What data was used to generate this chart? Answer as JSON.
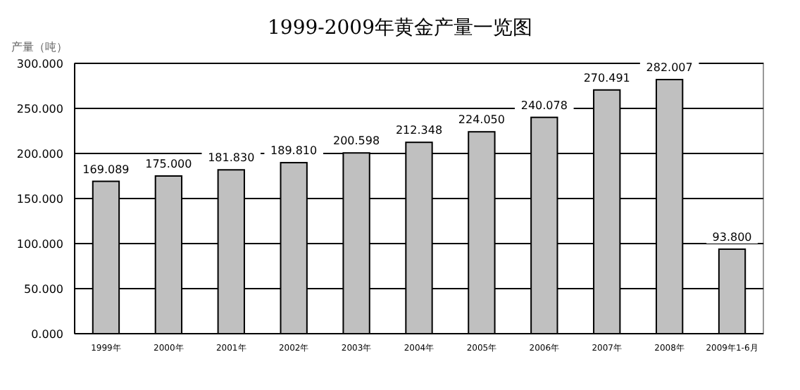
{
  "chart_data": {
    "type": "bar",
    "title": "1999-2009年黄金产量一览图",
    "ylabel": "产量（吨）",
    "categories": [
      "1999年",
      "2000年",
      "2001年",
      "2002年",
      "2003年",
      "2004年",
      "2005年",
      "2006年",
      "2007年",
      "2008年",
      "2009年1-6月"
    ],
    "values": [
      169.089,
      175.0,
      181.83,
      189.81,
      200.598,
      212.348,
      224.05,
      240.078,
      270.491,
      282.007,
      93.8
    ],
    "value_labels": [
      "169.089",
      "175.000",
      "181.830",
      "189.810",
      "200.598",
      "212.348",
      "224.050",
      "240.078",
      "270.491",
      "282.007",
      "93.800"
    ],
    "color": "#c0c0c0",
    "ylim": [
      0,
      300
    ],
    "yticks": [
      {
        "value": 0,
        "label": "0.000"
      },
      {
        "value": 50,
        "label": "50.000"
      },
      {
        "value": 100,
        "label": "100.000"
      },
      {
        "value": 150,
        "label": "150.000"
      },
      {
        "value": 200,
        "label": "200.000"
      },
      {
        "value": 250,
        "label": "250.000"
      },
      {
        "value": 300,
        "label": "300.000"
      }
    ],
    "grid": "y"
  }
}
